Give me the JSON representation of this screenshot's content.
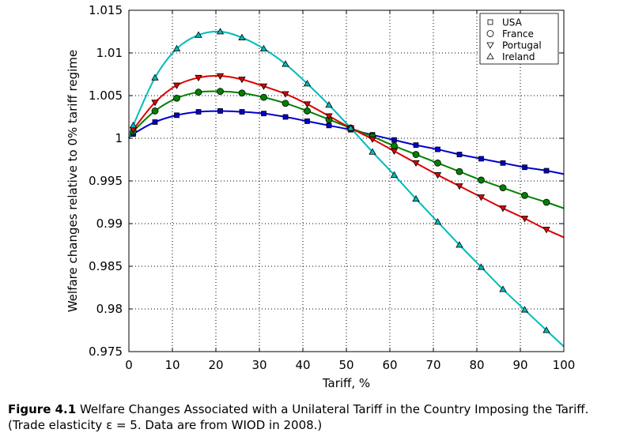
{
  "chart_data": {
    "type": "line",
    "xlabel": "Tariff, %",
    "ylabel": "Welfare changes relative to 0% tariff regime",
    "xlim": [
      0,
      100
    ],
    "ylim": [
      0.975,
      1.015
    ],
    "xticks": [
      0,
      10,
      20,
      30,
      40,
      50,
      60,
      70,
      80,
      90,
      100
    ],
    "xtick_labels": [
      "0",
      "10",
      "20",
      "30",
      "40",
      "50",
      "60",
      "70",
      "80",
      "90",
      "100"
    ],
    "yticks": [
      0.975,
      0.98,
      0.985,
      0.99,
      0.995,
      1.0,
      1.005,
      1.01,
      1.015
    ],
    "ytick_labels": [
      "0.975",
      "0.98",
      "0.985",
      "0.99",
      "0.995",
      "1",
      "1.005",
      "1.01",
      "1.015"
    ],
    "grid": true,
    "legend_position": "top-right",
    "series": [
      {
        "name": "USA",
        "color": "#0000cc",
        "marker": "square",
        "x": [
          0,
          1,
          6,
          11,
          16,
          21,
          26,
          31,
          36,
          41,
          46,
          51,
          56,
          61,
          66,
          71,
          76,
          81,
          86,
          91,
          96,
          100
        ],
        "y": [
          1.0,
          1.0005,
          1.0019,
          1.0027,
          1.0031,
          1.0032,
          1.0031,
          1.0029,
          1.0025,
          1.002,
          1.0015,
          1.001,
          1.0004,
          0.9998,
          0.9992,
          0.9987,
          0.9981,
          0.9976,
          0.9971,
          0.9966,
          0.9962,
          0.9958
        ],
        "marker_x": [
          1,
          6,
          11,
          16,
          21,
          26,
          31,
          36,
          41,
          46,
          51,
          56,
          61,
          66,
          71,
          76,
          81,
          86,
          91,
          96
        ]
      },
      {
        "name": "France",
        "color": "#008000",
        "marker": "circle",
        "x": [
          0,
          1,
          6,
          11,
          16,
          21,
          26,
          31,
          36,
          41,
          46,
          51,
          56,
          61,
          66,
          71,
          76,
          81,
          86,
          91,
          96,
          100
        ],
        "y": [
          1.0,
          1.0008,
          1.0032,
          1.0047,
          1.0054,
          1.0055,
          1.0053,
          1.0048,
          1.0041,
          1.0032,
          1.0022,
          1.0012,
          1.0002,
          0.9991,
          0.9981,
          0.9971,
          0.9961,
          0.9951,
          0.9942,
          0.9933,
          0.9925,
          0.9918
        ],
        "marker_x": [
          1,
          6,
          11,
          16,
          21,
          26,
          31,
          36,
          41,
          46,
          51,
          56,
          61,
          66,
          71,
          76,
          81,
          86,
          91,
          96
        ]
      },
      {
        "name": "Portugal",
        "color": "#dd0000",
        "marker": "triangle-down",
        "x": [
          0,
          1,
          6,
          11,
          16,
          21,
          26,
          31,
          36,
          41,
          46,
          51,
          56,
          61,
          66,
          71,
          76,
          81,
          86,
          91,
          96,
          100
        ],
        "y": [
          1.0,
          1.001,
          1.0042,
          1.0062,
          1.0071,
          1.0073,
          1.0069,
          1.0061,
          1.0052,
          1.004,
          1.0026,
          1.0012,
          0.9999,
          0.9985,
          0.9971,
          0.9957,
          0.9944,
          0.9931,
          0.9918,
          0.9906,
          0.9893,
          0.9884
        ],
        "marker_x": [
          1,
          6,
          11,
          16,
          21,
          26,
          31,
          36,
          41,
          46,
          51,
          56,
          61,
          66,
          71,
          76,
          81,
          86,
          91,
          96
        ]
      },
      {
        "name": "Ireland",
        "color": "#00bbbb",
        "marker": "triangle-up",
        "x": [
          0,
          1,
          6,
          11,
          16,
          21,
          26,
          31,
          36,
          41,
          46,
          51,
          56,
          61,
          66,
          71,
          76,
          81,
          86,
          91,
          96,
          100
        ],
        "y": [
          1.0,
          1.0015,
          1.0071,
          1.0105,
          1.0121,
          1.0125,
          1.0118,
          1.0105,
          1.0087,
          1.0064,
          1.0039,
          1.0012,
          0.9984,
          0.9957,
          0.9929,
          0.9902,
          0.9875,
          0.9849,
          0.9823,
          0.9799,
          0.9775,
          0.9756
        ],
        "marker_x": [
          1,
          6,
          11,
          16,
          21,
          26,
          31,
          36,
          41,
          46,
          51,
          56,
          61,
          66,
          71,
          76,
          81,
          86,
          91,
          96
        ]
      }
    ]
  },
  "caption": {
    "figure_number": "Figure 4.1",
    "title": "Welfare Changes Associated with a Unilateral Tariff in the Country Imposing the Tariff.",
    "note": "(Trade elasticity ε = 5. Data are from WIOD in 2008.)"
  }
}
